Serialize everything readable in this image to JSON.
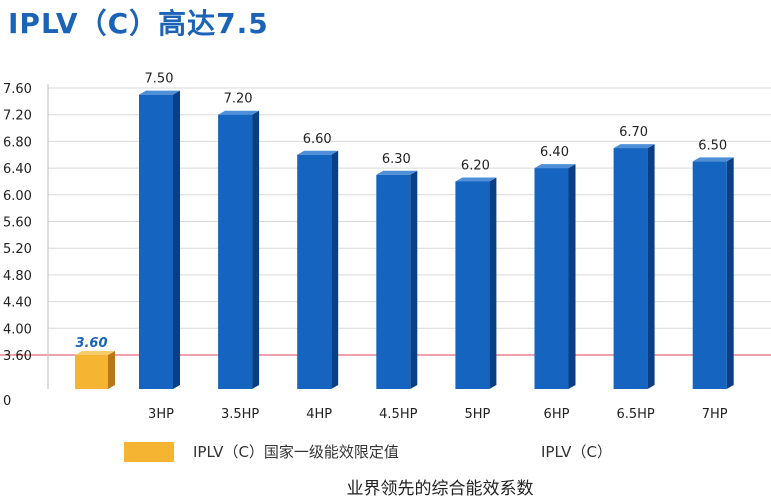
{
  "title": "IPLV（C）高达7.5",
  "chart_data": {
    "type": "bar",
    "categories": [
      "3HP",
      "3.5HP",
      "4HP",
      "4.5HP",
      "5HP",
      "6HP",
      "6.5HP",
      "7HP"
    ],
    "series": [
      {
        "name": "IPLV（C）",
        "values": [
          7.5,
          7.2,
          6.6,
          6.3,
          6.2,
          6.4,
          6.7,
          6.5
        ],
        "labels": [
          "7.50",
          "7.20",
          "6.60",
          "6.30",
          "6.20",
          "6.40",
          "6.70",
          "6.50"
        ]
      }
    ],
    "standard": {
      "name": "IPLV（C）国家一级能效限定值",
      "value": 3.6,
      "label": "3.60"
    },
    "y_ticks": [
      "7.60",
      "7.20",
      "6.80",
      "6.40",
      "6.00",
      "5.60",
      "5.20",
      "4.80",
      "4.40",
      "4.00",
      "3.60",
      "0"
    ],
    "ylim": [
      3.6,
      7.6
    ],
    "axis_break": true,
    "grid": true,
    "legend_position": "bottom",
    "caption": "业界领先的综合能效系数",
    "colors": {
      "bar": "#1565c0",
      "bar_side": "#0a3f86",
      "bar_top": "#4f8fd8",
      "standard": "#f5b532",
      "standard_side": "#b87818",
      "standard_line": "#e0455a",
      "grid": "#d9d9d9"
    }
  }
}
